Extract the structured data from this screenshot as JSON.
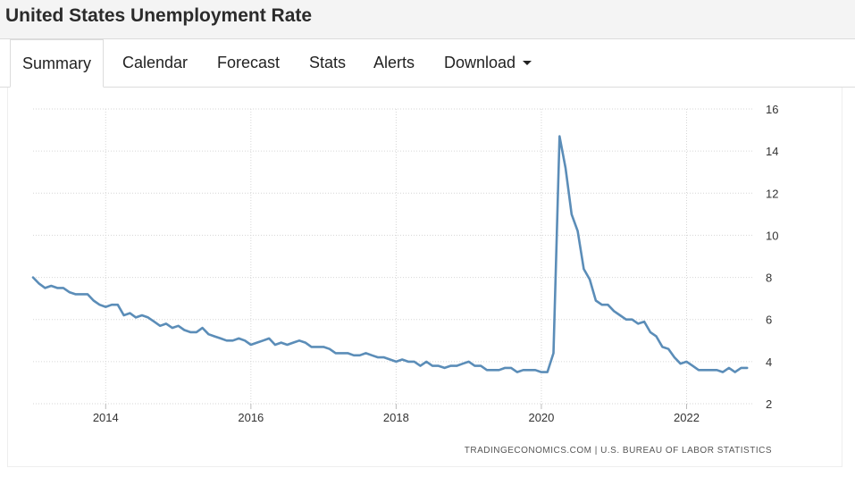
{
  "header": {
    "title": "United States Unemployment Rate"
  },
  "tabs": [
    {
      "label": "Summary",
      "active": true
    },
    {
      "label": "Calendar",
      "active": false
    },
    {
      "label": "Forecast",
      "active": false
    },
    {
      "label": "Stats",
      "active": false
    },
    {
      "label": "Alerts",
      "active": false
    },
    {
      "label": "Download",
      "active": false,
      "dropdown": true
    }
  ],
  "chart_data": {
    "type": "line",
    "title": "",
    "xlabel": "",
    "ylabel": "",
    "x_ticks": [
      "2014",
      "2016",
      "2018",
      "2020",
      "2022"
    ],
    "y_ticks": [
      2,
      4,
      6,
      8,
      10,
      12,
      14,
      16
    ],
    "ylim": [
      2,
      16
    ],
    "xlim": [
      "2013-01",
      "2022-12"
    ],
    "grid": true,
    "y_axis_side": "right",
    "line_color": "#5b8db8",
    "source": "TRADINGECONOMICS.COM  |  U.S. BUREAU OF LABOR STATISTICS",
    "series": [
      {
        "points": [
          [
            "2013-01",
            8.0
          ],
          [
            "2013-02",
            7.7
          ],
          [
            "2013-03",
            7.5
          ],
          [
            "2013-04",
            7.6
          ],
          [
            "2013-05",
            7.5
          ],
          [
            "2013-06",
            7.5
          ],
          [
            "2013-07",
            7.3
          ],
          [
            "2013-08",
            7.2
          ],
          [
            "2013-09",
            7.2
          ],
          [
            "2013-10",
            7.2
          ],
          [
            "2013-11",
            6.9
          ],
          [
            "2013-12",
            6.7
          ],
          [
            "2014-01",
            6.6
          ],
          [
            "2014-02",
            6.7
          ],
          [
            "2014-03",
            6.7
          ],
          [
            "2014-04",
            6.2
          ],
          [
            "2014-05",
            6.3
          ],
          [
            "2014-06",
            6.1
          ],
          [
            "2014-07",
            6.2
          ],
          [
            "2014-08",
            6.1
          ],
          [
            "2014-09",
            5.9
          ],
          [
            "2014-10",
            5.7
          ],
          [
            "2014-11",
            5.8
          ],
          [
            "2014-12",
            5.6
          ],
          [
            "2015-01",
            5.7
          ],
          [
            "2015-02",
            5.5
          ],
          [
            "2015-03",
            5.4
          ],
          [
            "2015-04",
            5.4
          ],
          [
            "2015-05",
            5.6
          ],
          [
            "2015-06",
            5.3
          ],
          [
            "2015-07",
            5.2
          ],
          [
            "2015-08",
            5.1
          ],
          [
            "2015-09",
            5.0
          ],
          [
            "2015-10",
            5.0
          ],
          [
            "2015-11",
            5.1
          ],
          [
            "2015-12",
            5.0
          ],
          [
            "2016-01",
            4.8
          ],
          [
            "2016-02",
            4.9
          ],
          [
            "2016-03",
            5.0
          ],
          [
            "2016-04",
            5.1
          ],
          [
            "2016-05",
            4.8
          ],
          [
            "2016-06",
            4.9
          ],
          [
            "2016-07",
            4.8
          ],
          [
            "2016-08",
            4.9
          ],
          [
            "2016-09",
            5.0
          ],
          [
            "2016-10",
            4.9
          ],
          [
            "2016-11",
            4.7
          ],
          [
            "2016-12",
            4.7
          ],
          [
            "2017-01",
            4.7
          ],
          [
            "2017-02",
            4.6
          ],
          [
            "2017-03",
            4.4
          ],
          [
            "2017-04",
            4.4
          ],
          [
            "2017-05",
            4.4
          ],
          [
            "2017-06",
            4.3
          ],
          [
            "2017-07",
            4.3
          ],
          [
            "2017-08",
            4.4
          ],
          [
            "2017-09",
            4.3
          ],
          [
            "2017-10",
            4.2
          ],
          [
            "2017-11",
            4.2
          ],
          [
            "2017-12",
            4.1
          ],
          [
            "2018-01",
            4.0
          ],
          [
            "2018-02",
            4.1
          ],
          [
            "2018-03",
            4.0
          ],
          [
            "2018-04",
            4.0
          ],
          [
            "2018-05",
            3.8
          ],
          [
            "2018-06",
            4.0
          ],
          [
            "2018-07",
            3.8
          ],
          [
            "2018-08",
            3.8
          ],
          [
            "2018-09",
            3.7
          ],
          [
            "2018-10",
            3.8
          ],
          [
            "2018-11",
            3.8
          ],
          [
            "2018-12",
            3.9
          ],
          [
            "2019-01",
            4.0
          ],
          [
            "2019-02",
            3.8
          ],
          [
            "2019-03",
            3.8
          ],
          [
            "2019-04",
            3.6
          ],
          [
            "2019-05",
            3.6
          ],
          [
            "2019-06",
            3.6
          ],
          [
            "2019-07",
            3.7
          ],
          [
            "2019-08",
            3.7
          ],
          [
            "2019-09",
            3.5
          ],
          [
            "2019-10",
            3.6
          ],
          [
            "2019-11",
            3.6
          ],
          [
            "2019-12",
            3.6
          ],
          [
            "2020-01",
            3.5
          ],
          [
            "2020-02",
            3.5
          ],
          [
            "2020-03",
            4.4
          ],
          [
            "2020-04",
            14.7
          ],
          [
            "2020-05",
            13.2
          ],
          [
            "2020-06",
            11.0
          ],
          [
            "2020-07",
            10.2
          ],
          [
            "2020-08",
            8.4
          ],
          [
            "2020-09",
            7.9
          ],
          [
            "2020-10",
            6.9
          ],
          [
            "2020-11",
            6.7
          ],
          [
            "2020-12",
            6.7
          ],
          [
            "2021-01",
            6.4
          ],
          [
            "2021-02",
            6.2
          ],
          [
            "2021-03",
            6.0
          ],
          [
            "2021-04",
            6.0
          ],
          [
            "2021-05",
            5.8
          ],
          [
            "2021-06",
            5.9
          ],
          [
            "2021-07",
            5.4
          ],
          [
            "2021-08",
            5.2
          ],
          [
            "2021-09",
            4.7
          ],
          [
            "2021-10",
            4.6
          ],
          [
            "2021-11",
            4.2
          ],
          [
            "2021-12",
            3.9
          ],
          [
            "2022-01",
            4.0
          ],
          [
            "2022-02",
            3.8
          ],
          [
            "2022-03",
            3.6
          ],
          [
            "2022-04",
            3.6
          ],
          [
            "2022-05",
            3.6
          ],
          [
            "2022-06",
            3.6
          ],
          [
            "2022-07",
            3.5
          ],
          [
            "2022-08",
            3.7
          ],
          [
            "2022-09",
            3.5
          ],
          [
            "2022-10",
            3.7
          ],
          [
            "2022-11",
            3.7
          ]
        ]
      }
    ]
  }
}
